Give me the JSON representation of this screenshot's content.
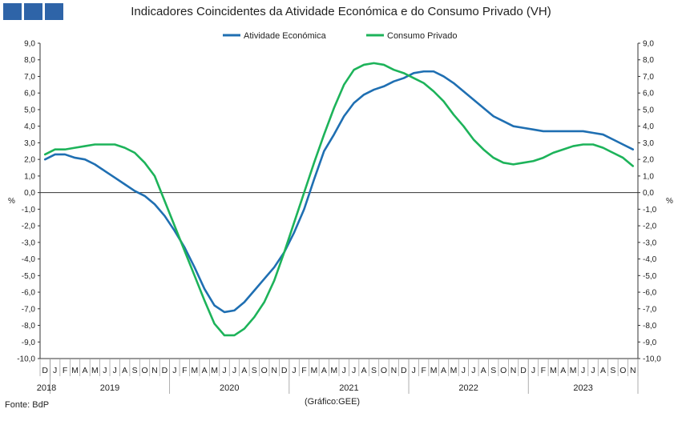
{
  "header": {
    "title": "Indicadores Coincidentes da Atividade Económica e do Consumo Privado (VH)",
    "source": "Fonte: BdP",
    "credit": "(Gráfico:GEE)"
  },
  "colors": {
    "logo": "#2e64a8",
    "activity": "#1f6fb2",
    "consumption": "#1db35a",
    "axis": "#333333"
  },
  "chart_data": {
    "type": "line",
    "title": "Indicadores Coincidentes da Atividade Económica e do Consumo Privado (VH)",
    "ylabel": "%",
    "ylabel_right": "%",
    "ylim": [
      -10,
      9
    ],
    "y_ticks": [
      "9,0",
      "8,0",
      "7,0",
      "6,0",
      "5,0",
      "4,0",
      "3,0",
      "2,0",
      "1,0",
      "0,0",
      "-1,0",
      "-2,0",
      "-3,0",
      "-4,0",
      "-5,0",
      "-6,0",
      "-7,0",
      "-8,0",
      "-9,0",
      "-10,0"
    ],
    "x_months": [
      "D",
      "J",
      "F",
      "M",
      "A",
      "M",
      "J",
      "J",
      "A",
      "S",
      "O",
      "N",
      "D",
      "J",
      "F",
      "M",
      "A",
      "M",
      "J",
      "J",
      "A",
      "S",
      "O",
      "N",
      "D",
      "J",
      "F",
      "M",
      "A",
      "M",
      "J",
      "J",
      "A",
      "S",
      "O",
      "N",
      "D",
      "J",
      "F",
      "M",
      "A",
      "M",
      "J",
      "J",
      "A",
      "S",
      "O",
      "N",
      "D",
      "J",
      "F",
      "M",
      "A",
      "M",
      "J",
      "J",
      "A",
      "S",
      "O",
      "N"
    ],
    "x_years": [
      {
        "label": "2018",
        "start": 0,
        "end": 0
      },
      {
        "label": "2019",
        "start": 1,
        "end": 12
      },
      {
        "label": "2020",
        "start": 13,
        "end": 24
      },
      {
        "label": "2021",
        "start": 25,
        "end": 36
      },
      {
        "label": "2022",
        "start": 37,
        "end": 48
      },
      {
        "label": "2023",
        "start": 49,
        "end": 59
      }
    ],
    "legend_position": "top-center",
    "series": [
      {
        "name": "Atividade Económica",
        "values": [
          2.0,
          2.3,
          2.3,
          2.1,
          2.0,
          1.7,
          1.3,
          0.9,
          0.5,
          0.1,
          -0.2,
          -0.7,
          -1.4,
          -2.3,
          -3.3,
          -4.5,
          -5.8,
          -6.8,
          -7.2,
          -7.1,
          -6.6,
          -5.9,
          -5.2,
          -4.5,
          -3.6,
          -2.4,
          -1.0,
          0.8,
          2.5,
          3.5,
          4.6,
          5.4,
          5.9,
          6.2,
          6.4,
          6.7,
          6.9,
          7.2,
          7.3,
          7.3,
          7.0,
          6.6,
          6.1,
          5.6,
          5.1,
          4.6,
          4.3,
          4.0,
          3.9,
          3.8,
          3.7,
          3.7,
          3.7,
          3.7,
          3.7,
          3.6,
          3.5,
          3.2,
          2.9,
          2.6
        ]
      },
      {
        "name": "Consumo Privado",
        "values": [
          2.3,
          2.6,
          2.6,
          2.7,
          2.8,
          2.9,
          2.9,
          2.9,
          2.7,
          2.4,
          1.8,
          1.0,
          -0.5,
          -2.0,
          -3.5,
          -5.0,
          -6.5,
          -7.9,
          -8.6,
          -8.6,
          -8.2,
          -7.5,
          -6.6,
          -5.3,
          -3.6,
          -1.8,
          0.0,
          1.8,
          3.5,
          5.1,
          6.5,
          7.4,
          7.7,
          7.8,
          7.7,
          7.4,
          7.2,
          6.9,
          6.6,
          6.1,
          5.5,
          4.7,
          4.0,
          3.2,
          2.6,
          2.1,
          1.8,
          1.7,
          1.8,
          1.9,
          2.1,
          2.4,
          2.6,
          2.8,
          2.9,
          2.9,
          2.7,
          2.4,
          2.1,
          1.6
        ]
      }
    ]
  }
}
